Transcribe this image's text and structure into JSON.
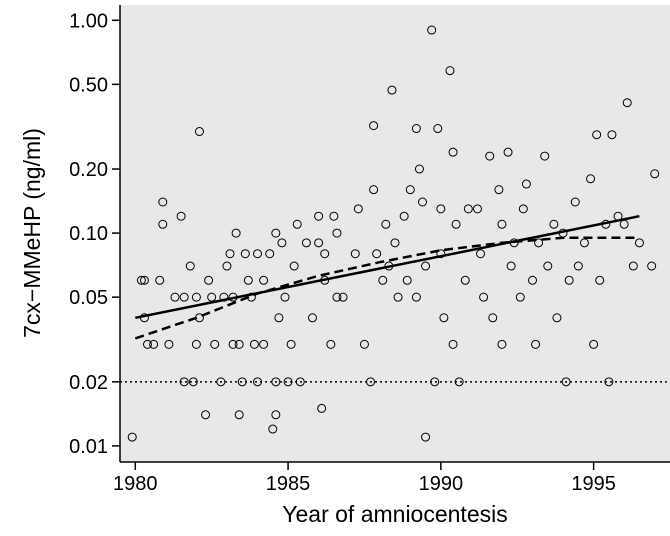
{
  "chart_data": {
    "type": "scatter",
    "xlabel": "Year of amniocentesis",
    "ylabel": "7cx−MMeHP (ng/ml)",
    "xlim": [
      1979.5,
      1997.5
    ],
    "xticks": [
      1980,
      1985,
      1990,
      1995
    ],
    "ylim": [
      0.0084,
      1.18
    ],
    "yscale": "log",
    "yticks": [
      {
        "value": 1,
        "label": "1.00"
      },
      {
        "value": 0.5,
        "label": "0.50"
      },
      {
        "value": 0.2,
        "label": "0.20"
      },
      {
        "value": 0.1,
        "label": "0.10"
      },
      0.05,
      0.02,
      0.01
    ],
    "background": "#e8e8e8",
    "points": {
      "color": "#000000",
      "x": [
        1979.9,
        1980.2,
        1980.3,
        1980.4,
        1980.3,
        1980.6,
        1980.8,
        1980.9,
        1980.9,
        1981.1,
        1981.3,
        1981.5,
        1981.6,
        1981.6,
        1981.8,
        1981.9,
        1982.0,
        1982.0,
        1982.1,
        1982.1,
        1982.3,
        1982.4,
        1982.5,
        1982.6,
        1982.8,
        1982.9,
        1983.0,
        1983.1,
        1983.2,
        1983.3,
        1983.2,
        1983.4,
        1983.4,
        1983.5,
        1983.6,
        1983.7,
        1983.8,
        1983.9,
        1984.0,
        1984.0,
        1984.2,
        1984.2,
        1984.4,
        1984.5,
        1984.6,
        1984.6,
        1984.6,
        1984.7,
        1984.8,
        1984.9,
        1985.0,
        1985.1,
        1985.2,
        1985.3,
        1985.4,
        1985.6,
        1985.8,
        1986.0,
        1986.0,
        1986.1,
        1986.2,
        1986.2,
        1986.4,
        1986.5,
        1986.6,
        1986.6,
        1986.8,
        1987.2,
        1987.3,
        1987.5,
        1987.7,
        1987.8,
        1987.8,
        1987.9,
        1988.1,
        1988.2,
        1988.3,
        1988.4,
        1988.5,
        1988.6,
        1988.8,
        1988.9,
        1989.0,
        1989.2,
        1989.3,
        1989.2,
        1989.4,
        1989.5,
        1989.5,
        1989.7,
        1989.8,
        1989.9,
        1990.0,
        1990.0,
        1990.1,
        1990.3,
        1990.4,
        1990.4,
        1990.5,
        1990.6,
        1990.8,
        1990.9,
        1991.2,
        1991.3,
        1991.4,
        1991.6,
        1991.7,
        1991.9,
        1992.0,
        1992.0,
        1992.2,
        1992.3,
        1992.4,
        1992.6,
        1992.7,
        1992.8,
        1993.0,
        1993.1,
        1993.2,
        1993.4,
        1993.5,
        1993.7,
        1993.8,
        1994.0,
        1994.1,
        1994.2,
        1994.4,
        1994.5,
        1994.7,
        1994.9,
        1995.0,
        1995.1,
        1995.2,
        1995.4,
        1995.5,
        1995.6,
        1995.8,
        1996.0,
        1996.1,
        1996.3,
        1996.5,
        1996.9,
        1997.0
      ],
      "y": [
        0.011,
        0.06,
        0.04,
        0.03,
        0.06,
        0.03,
        0.06,
        0.11,
        0.14,
        0.03,
        0.05,
        0.12,
        0.05,
        0.02,
        0.07,
        0.02,
        0.05,
        0.03,
        0.3,
        0.04,
        0.014,
        0.06,
        0.05,
        0.03,
        0.02,
        0.05,
        0.07,
        0.08,
        0.05,
        0.1,
        0.03,
        0.014,
        0.03,
        0.02,
        0.08,
        0.06,
        0.05,
        0.03,
        0.02,
        0.08,
        0.03,
        0.06,
        0.08,
        0.012,
        0.1,
        0.02,
        0.014,
        0.04,
        0.09,
        0.05,
        0.02,
        0.03,
        0.07,
        0.11,
        0.02,
        0.09,
        0.04,
        0.09,
        0.12,
        0.015,
        0.06,
        0.08,
        0.03,
        0.12,
        0.1,
        0.05,
        0.05,
        0.08,
        0.13,
        0.03,
        0.02,
        0.32,
        0.16,
        0.08,
        0.06,
        0.11,
        0.07,
        0.47,
        0.09,
        0.05,
        0.12,
        0.06,
        0.16,
        0.31,
        0.2,
        0.05,
        0.14,
        0.011,
        0.07,
        0.9,
        0.02,
        0.31,
        0.13,
        0.08,
        0.04,
        0.58,
        0.24,
        0.03,
        0.11,
        0.02,
        0.06,
        0.13,
        0.13,
        0.08,
        0.05,
        0.23,
        0.04,
        0.16,
        0.11,
        0.03,
        0.24,
        0.07,
        0.09,
        0.05,
        0.13,
        0.17,
        0.06,
        0.03,
        0.09,
        0.23,
        0.07,
        0.11,
        0.04,
        0.1,
        0.02,
        0.06,
        0.14,
        0.07,
        0.09,
        0.18,
        0.03,
        0.29,
        0.06,
        0.11,
        0.02,
        0.29,
        0.12,
        0.11,
        0.41,
        0.07,
        0.09,
        0.07,
        0.19
      ]
    },
    "lines": [
      {
        "style": "solid",
        "x": [
          1980,
          1996.5
        ],
        "y": [
          0.04,
          0.12
        ]
      },
      {
        "style": "dashed",
        "x": [
          1980,
          1982,
          1984,
          1986,
          1988,
          1990,
          1992,
          1994,
          1996.5
        ],
        "y": [
          0.032,
          0.04,
          0.052,
          0.063,
          0.073,
          0.083,
          0.09,
          0.095,
          0.095
        ]
      }
    ],
    "reference_line": {
      "style": "dotted",
      "y": 0.02
    }
  }
}
